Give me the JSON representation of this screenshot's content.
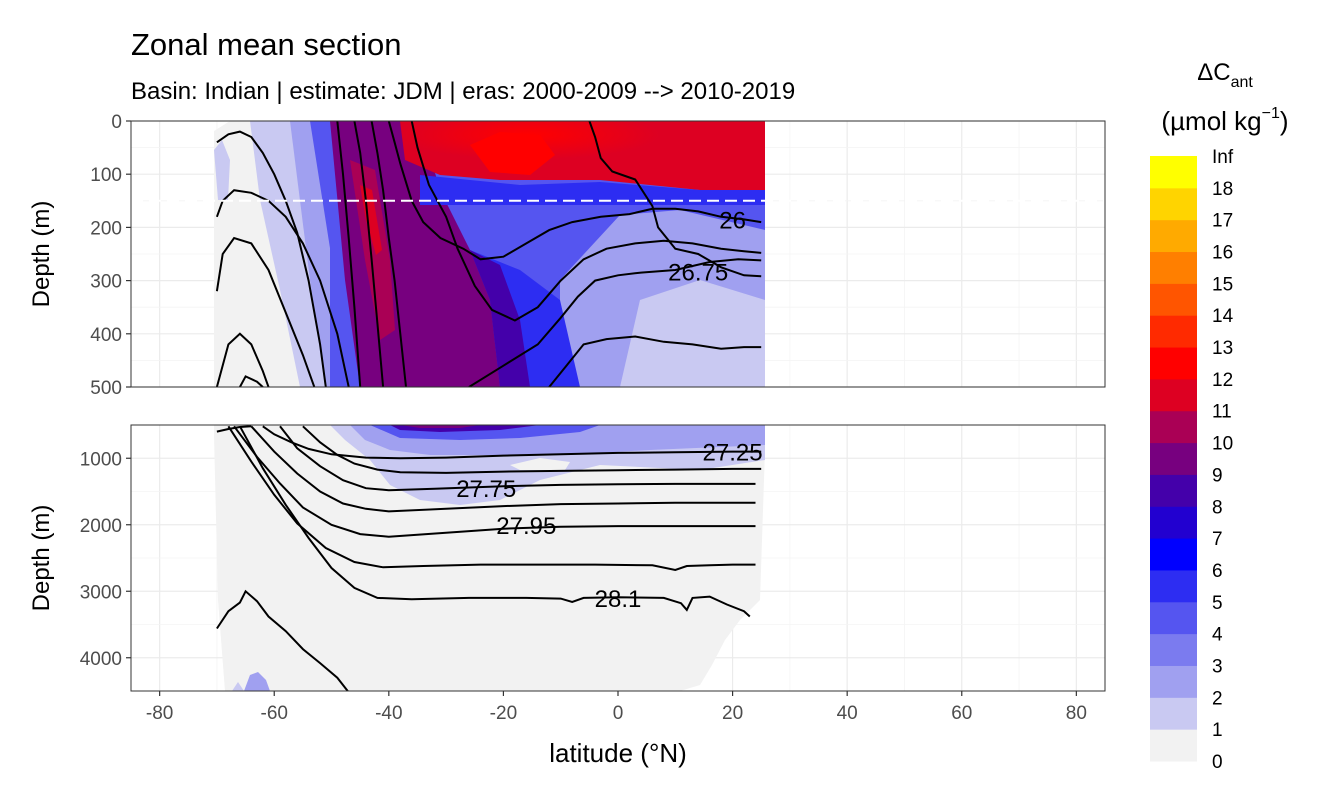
{
  "chart_data": {
    "type": "heatmap",
    "title": "Zonal mean section",
    "subtitle": "Basin: Indian | estimate: JDM  | eras: 2000-2009 --> 2010-2019",
    "xlabel": "latitude (°N)",
    "ylabel_top": "Depth (m)",
    "ylabel_bottom": "Depth (m)",
    "xlim": [
      -85,
      85
    ],
    "x_ticks": [
      -80,
      -60,
      -40,
      -20,
      0,
      20,
      40,
      60,
      80
    ],
    "x_tick_labels": [
      "-80",
      "-60",
      "-40",
      "-20",
      "0",
      "20",
      "40",
      "60",
      "80"
    ],
    "top_panel": {
      "ylim": [
        0,
        500
      ],
      "y_ticks": [
        0,
        100,
        200,
        300,
        400,
        500
      ],
      "y_tick_labels": [
        "0",
        "100",
        "200",
        "300",
        "400",
        "500"
      ],
      "reference_depth": 150
    },
    "bottom_panel": {
      "ylim": [
        500,
        4500
      ],
      "y_ticks": [
        1000,
        2000,
        3000,
        4000
      ],
      "y_tick_labels": [
        "1000",
        "2000",
        "3000",
        "4000"
      ]
    },
    "data_extent": {
      "lat_min": -70,
      "lat_max": 25
    },
    "colorbar": {
      "title": "ΔC",
      "title_subscript": "ant",
      "unit_label": "(µmol kg",
      "unit_superscript": "−1",
      "unit_close": ")",
      "levels": [
        "0",
        "1",
        "2",
        "3",
        "4",
        "5",
        "6",
        "7",
        "8",
        "9",
        "10",
        "11",
        "12",
        "13",
        "14",
        "15",
        "16",
        "17",
        "18",
        "Inf"
      ],
      "colors": [
        "#f2f2f2",
        "#c9c9f2",
        "#a0a0f0",
        "#7b7bef",
        "#5555f0",
        "#2d2df2",
        "#0000ff",
        "#2200d0",
        "#4400aa",
        "#77007f",
        "#aa0055",
        "#dd0022",
        "#ff0000",
        "#ff2a00",
        "#ff5500",
        "#ff7f00",
        "#ffaa00",
        "#ffd400",
        "#ffff00"
      ]
    },
    "isopycnal_labels": [
      {
        "label": "26",
        "lat": 20,
        "depth": 185
      },
      {
        "label": "26.75",
        "lat": 14,
        "depth": 283
      },
      {
        "label": "27.25",
        "lat": 20,
        "depth": 900
      },
      {
        "label": "27.75",
        "lat": -23,
        "depth": 1450
      },
      {
        "label": "27.95",
        "lat": -16,
        "depth": 2000
      },
      {
        "label": "28.1",
        "lat": 0,
        "depth": 3100
      }
    ],
    "isopycnals_top": [
      [
        [
          -70,
          40
        ],
        [
          -68,
          25
        ],
        [
          -66,
          20
        ],
        [
          -64,
          30
        ],
        [
          -62,
          60
        ],
        [
          -60,
          100
        ],
        [
          -58,
          150
        ],
        [
          -56,
          210
        ],
        [
          -54,
          300
        ],
        [
          -52,
          420
        ],
        [
          -51,
          500
        ]
      ],
      [
        [
          -70,
          180
        ],
        [
          -69,
          150
        ],
        [
          -67,
          130
        ],
        [
          -64,
          135
        ],
        [
          -61,
          150
        ],
        [
          -58,
          180
        ],
        [
          -55,
          230
        ],
        [
          -52,
          300
        ],
        [
          -49,
          400
        ],
        [
          -47,
          500
        ]
      ],
      [
        [
          -70,
          320
        ],
        [
          -69,
          250
        ],
        [
          -67,
          220
        ],
        [
          -64,
          230
        ],
        [
          -61,
          280
        ],
        [
          -58,
          360
        ],
        [
          -55,
          440
        ],
        [
          -53,
          500
        ]
      ],
      [
        [
          -70,
          500
        ],
        [
          -68,
          420
        ],
        [
          -66,
          400
        ],
        [
          -64,
          420
        ],
        [
          -62,
          470
        ],
        [
          -61,
          500
        ]
      ],
      [
        [
          -66,
          500
        ],
        [
          -65,
          480
        ],
        [
          -63,
          490
        ],
        [
          -62,
          500
        ]
      ],
      [
        [
          -49,
          0
        ],
        [
          -48,
          100
        ],
        [
          -47,
          220
        ],
        [
          -46,
          350
        ],
        [
          -45,
          500
        ]
      ],
      [
        [
          -46,
          0
        ],
        [
          -45,
          60
        ],
        [
          -44,
          150
        ],
        [
          -43,
          260
        ],
        [
          -42,
          380
        ],
        [
          -41,
          500
        ]
      ],
      [
        [
          -43,
          0
        ],
        [
          -42,
          60
        ],
        [
          -41,
          130
        ],
        [
          -40,
          220
        ],
        [
          -39,
          300
        ],
        [
          -38,
          400
        ],
        [
          -37,
          500
        ]
      ],
      [
        [
          -40,
          0
        ],
        [
          -39,
          40
        ],
        [
          -38,
          80
        ],
        [
          -36,
          150
        ],
        [
          -34,
          190
        ],
        [
          -31,
          220
        ],
        [
          -27,
          240
        ],
        [
          -24,
          260
        ],
        [
          -20,
          255
        ],
        [
          -16,
          230
        ],
        [
          -12,
          205
        ],
        [
          -8,
          190
        ],
        [
          -3,
          180
        ],
        [
          2,
          175
        ],
        [
          6,
          165
        ],
        [
          10,
          165
        ],
        [
          14,
          170
        ],
        [
          18,
          180
        ],
        [
          22,
          185
        ],
        [
          25,
          190
        ]
      ],
      [
        [
          -36,
          0
        ],
        [
          -35,
          50
        ],
        [
          -33,
          120
        ],
        [
          -30,
          180
        ],
        [
          -28,
          240
        ],
        [
          -25,
          310
        ],
        [
          -22,
          355
        ],
        [
          -18,
          375
        ],
        [
          -14,
          350
        ],
        [
          -10,
          300
        ],
        [
          -6,
          260
        ],
        [
          -2,
          240
        ],
        [
          3,
          230
        ],
        [
          8,
          225
        ],
        [
          13,
          230
        ],
        [
          18,
          240
        ],
        [
          22,
          245
        ],
        [
          25,
          248
        ]
      ],
      [
        [
          -12,
          500
        ],
        [
          -9,
          460
        ],
        [
          -6,
          420
        ],
        [
          -2,
          410
        ],
        [
          3,
          405
        ],
        [
          8,
          415
        ],
        [
          13,
          420
        ],
        [
          18,
          428
        ],
        [
          22,
          425
        ],
        [
          25,
          425
        ]
      ],
      [
        [
          -5,
          0
        ],
        [
          -4,
          30
        ],
        [
          -3,
          70
        ],
        [
          -1,
          95
        ],
        [
          3,
          110
        ],
        [
          6,
          160
        ],
        [
          7,
          200
        ],
        [
          10,
          240
        ],
        [
          14,
          250
        ],
        [
          18,
          275
        ],
        [
          22,
          290
        ],
        [
          25,
          292
        ]
      ],
      [
        [
          -26,
          500
        ],
        [
          -20,
          460
        ],
        [
          -14,
          420
        ],
        [
          -10,
          370
        ],
        [
          -7,
          330
        ],
        [
          -4,
          300
        ],
        [
          0,
          290
        ],
        [
          4,
          285
        ],
        [
          10,
          280
        ],
        [
          16,
          265
        ],
        [
          21,
          260
        ],
        [
          25,
          262
        ]
      ]
    ],
    "isopycnals_bottom": [
      [
        [
          -70,
          600
        ],
        [
          -68,
          560
        ],
        [
          -66,
          530
        ],
        [
          -64,
          520
        ]
      ],
      [
        [
          -62,
          520
        ],
        [
          -60,
          640
        ],
        [
          -57,
          760
        ],
        [
          -54,
          860
        ],
        [
          -50,
          940
        ],
        [
          -44,
          990
        ],
        [
          -38,
          1000
        ],
        [
          -30,
          990
        ],
        [
          -20,
          960
        ],
        [
          -10,
          940
        ],
        [
          0,
          920
        ],
        [
          10,
          910
        ],
        [
          20,
          900
        ],
        [
          25,
          900
        ]
      ],
      [
        [
          -55,
          520
        ],
        [
          -52,
          760
        ],
        [
          -49,
          950
        ],
        [
          -46,
          1080
        ],
        [
          -42,
          1170
        ],
        [
          -38,
          1210
        ],
        [
          -30,
          1220
        ],
        [
          -20,
          1200
        ],
        [
          -10,
          1190
        ],
        [
          0,
          1180
        ],
        [
          10,
          1170
        ],
        [
          20,
          1160
        ],
        [
          25,
          1160
        ]
      ],
      [
        [
          -59,
          520
        ],
        [
          -56,
          850
        ],
        [
          -52,
          1120
        ],
        [
          -48,
          1330
        ],
        [
          -44,
          1450
        ],
        [
          -40,
          1480
        ],
        [
          -32,
          1460
        ],
        [
          -20,
          1420
        ],
        [
          -10,
          1400
        ],
        [
          0,
          1390
        ],
        [
          10,
          1385
        ],
        [
          20,
          1385
        ],
        [
          24,
          1385
        ]
      ],
      [
        [
          -64,
          520
        ],
        [
          -60,
          900
        ],
        [
          -56,
          1230
        ],
        [
          -52,
          1500
        ],
        [
          -48,
          1680
        ],
        [
          -44,
          1760
        ],
        [
          -40,
          1800
        ],
        [
          -30,
          1760
        ],
        [
          -20,
          1720
        ],
        [
          -10,
          1690
        ],
        [
          0,
          1680
        ],
        [
          10,
          1670
        ],
        [
          20,
          1670
        ],
        [
          24,
          1670
        ]
      ],
      [
        [
          -67,
          520
        ],
        [
          -63,
          980
        ],
        [
          -59,
          1380
        ],
        [
          -55,
          1740
        ],
        [
          -50,
          2000
        ],
        [
          -45,
          2140
        ],
        [
          -40,
          2180
        ],
        [
          -30,
          2120
        ],
        [
          -20,
          2060
        ],
        [
          -10,
          2030
        ],
        [
          0,
          2020
        ],
        [
          10,
          2020
        ],
        [
          20,
          2020
        ],
        [
          24,
          2020
        ]
      ],
      [
        [
          -68,
          520
        ],
        [
          -64,
          1050
        ],
        [
          -60,
          1550
        ],
        [
          -56,
          1980
        ],
        [
          -51,
          2350
        ],
        [
          -46,
          2560
        ],
        [
          -41,
          2640
        ],
        [
          -34,
          2620
        ],
        [
          -24,
          2600
        ],
        [
          -14,
          2600
        ],
        [
          -4,
          2600
        ],
        [
          6,
          2610
        ],
        [
          10,
          2680
        ],
        [
          12,
          2620
        ],
        [
          16,
          2610
        ],
        [
          20,
          2600
        ],
        [
          24,
          2600
        ]
      ],
      [
        [
          -66,
          520
        ],
        [
          -62,
          1150
        ],
        [
          -58,
          1700
        ],
        [
          -54,
          2200
        ],
        [
          -50,
          2650
        ],
        [
          -46,
          2950
        ],
        [
          -42,
          3100
        ],
        [
          -36,
          3120
        ],
        [
          -26,
          3100
        ],
        [
          -16,
          3100
        ],
        [
          -10,
          3110
        ],
        [
          -8,
          3160
        ],
        [
          -6,
          3100
        ],
        [
          0,
          3090
        ],
        [
          8,
          3100
        ],
        [
          11,
          3180
        ],
        [
          12,
          3280
        ],
        [
          13,
          3100
        ],
        [
          16,
          3080
        ],
        [
          19,
          3200
        ],
        [
          22,
          3300
        ],
        [
          23,
          3380
        ]
      ],
      [
        [
          -70,
          3560
        ],
        [
          -68,
          3300
        ],
        [
          -66,
          3170
        ],
        [
          -65,
          3000
        ],
        [
          -63,
          3150
        ],
        [
          -61,
          3380
        ],
        [
          -58,
          3600
        ],
        [
          -55,
          3870
        ],
        [
          -52,
          4080
        ],
        [
          -49,
          4300
        ],
        [
          -47,
          4520
        ]
      ]
    ]
  }
}
